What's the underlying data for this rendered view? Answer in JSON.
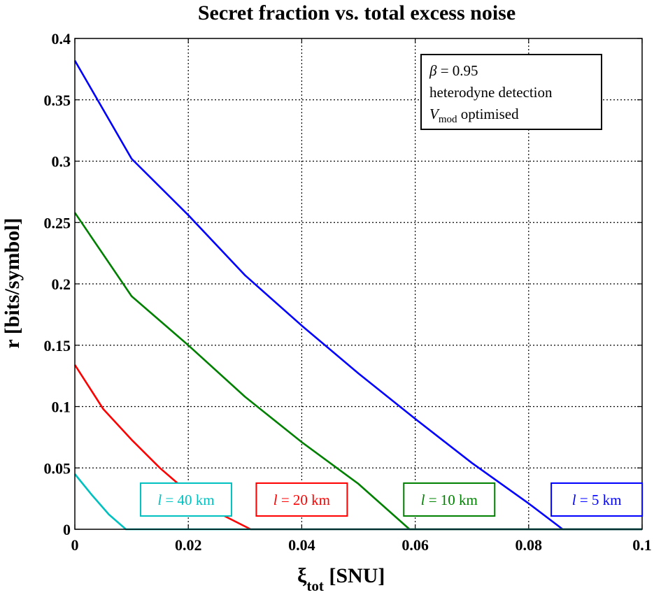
{
  "chart_data": {
    "type": "line",
    "title": "Secret fraction vs. total excess noise",
    "xlabel": {
      "main": "ξ",
      "sub": "tot",
      "unit": " [SNU]"
    },
    "ylabel": "r [bits/symbol]",
    "xlim": [
      0,
      0.1
    ],
    "ylim": [
      0,
      0.4
    ],
    "x_ticks": [
      0,
      0.02,
      0.04,
      0.06,
      0.08,
      0.1
    ],
    "x_tick_labels": [
      "0",
      "0.02",
      "0.04",
      "0.06",
      "0.08",
      "0.1"
    ],
    "y_ticks": [
      0,
      0.05,
      0.1,
      0.15,
      0.2,
      0.25,
      0.3,
      0.35,
      0.4
    ],
    "y_tick_labels": [
      "0",
      "0.05",
      "0.1",
      "0.15",
      "0.2",
      "0.25",
      "0.3",
      "0.35",
      "0.4"
    ],
    "grid": true,
    "grid_style": "dotted",
    "annotation": {
      "beta_symbol": "β",
      "beta_value": " = 0.95",
      "detection": "heterodyne detection",
      "vmod_symbol": "V",
      "vmod_sub": "mod",
      "vmod_text": " optimised"
    },
    "series": [
      {
        "name": "l = 5 km",
        "label_var": "l",
        "label_rest": " = 5 km",
        "color": "#0000ff",
        "x": [
          0,
          0.01,
          0.02,
          0.03,
          0.04,
          0.05,
          0.06,
          0.07,
          0.08,
          0.086,
          0.1
        ],
        "y": [
          0.382,
          0.302,
          0.256,
          0.207,
          0.166,
          0.127,
          0.09,
          0.054,
          0.021,
          0,
          0
        ]
      },
      {
        "name": "l = 10 km",
        "label_var": "l",
        "label_rest": " = 10 km",
        "color": "#008000",
        "x": [
          0,
          0.01,
          0.02,
          0.03,
          0.04,
          0.05,
          0.059,
          0.1
        ],
        "y": [
          0.258,
          0.19,
          0.15,
          0.108,
          0.071,
          0.037,
          0,
          0
        ]
      },
      {
        "name": "l = 20 km",
        "label_var": "l",
        "label_rest": " = 20 km",
        "color": "#ff0000",
        "x": [
          0,
          0.005,
          0.01,
          0.015,
          0.02,
          0.025,
          0.031,
          0.1
        ],
        "y": [
          0.134,
          0.098,
          0.073,
          0.05,
          0.03,
          0.014,
          0,
          0
        ]
      },
      {
        "name": "l = 40 km",
        "label_var": "l",
        "label_rest": " = 40 km",
        "color": "#00c0c0",
        "x": [
          0,
          0.003,
          0.006,
          0.009,
          0.1
        ],
        "y": [
          0.045,
          0.028,
          0.012,
          0,
          0
        ]
      }
    ]
  }
}
